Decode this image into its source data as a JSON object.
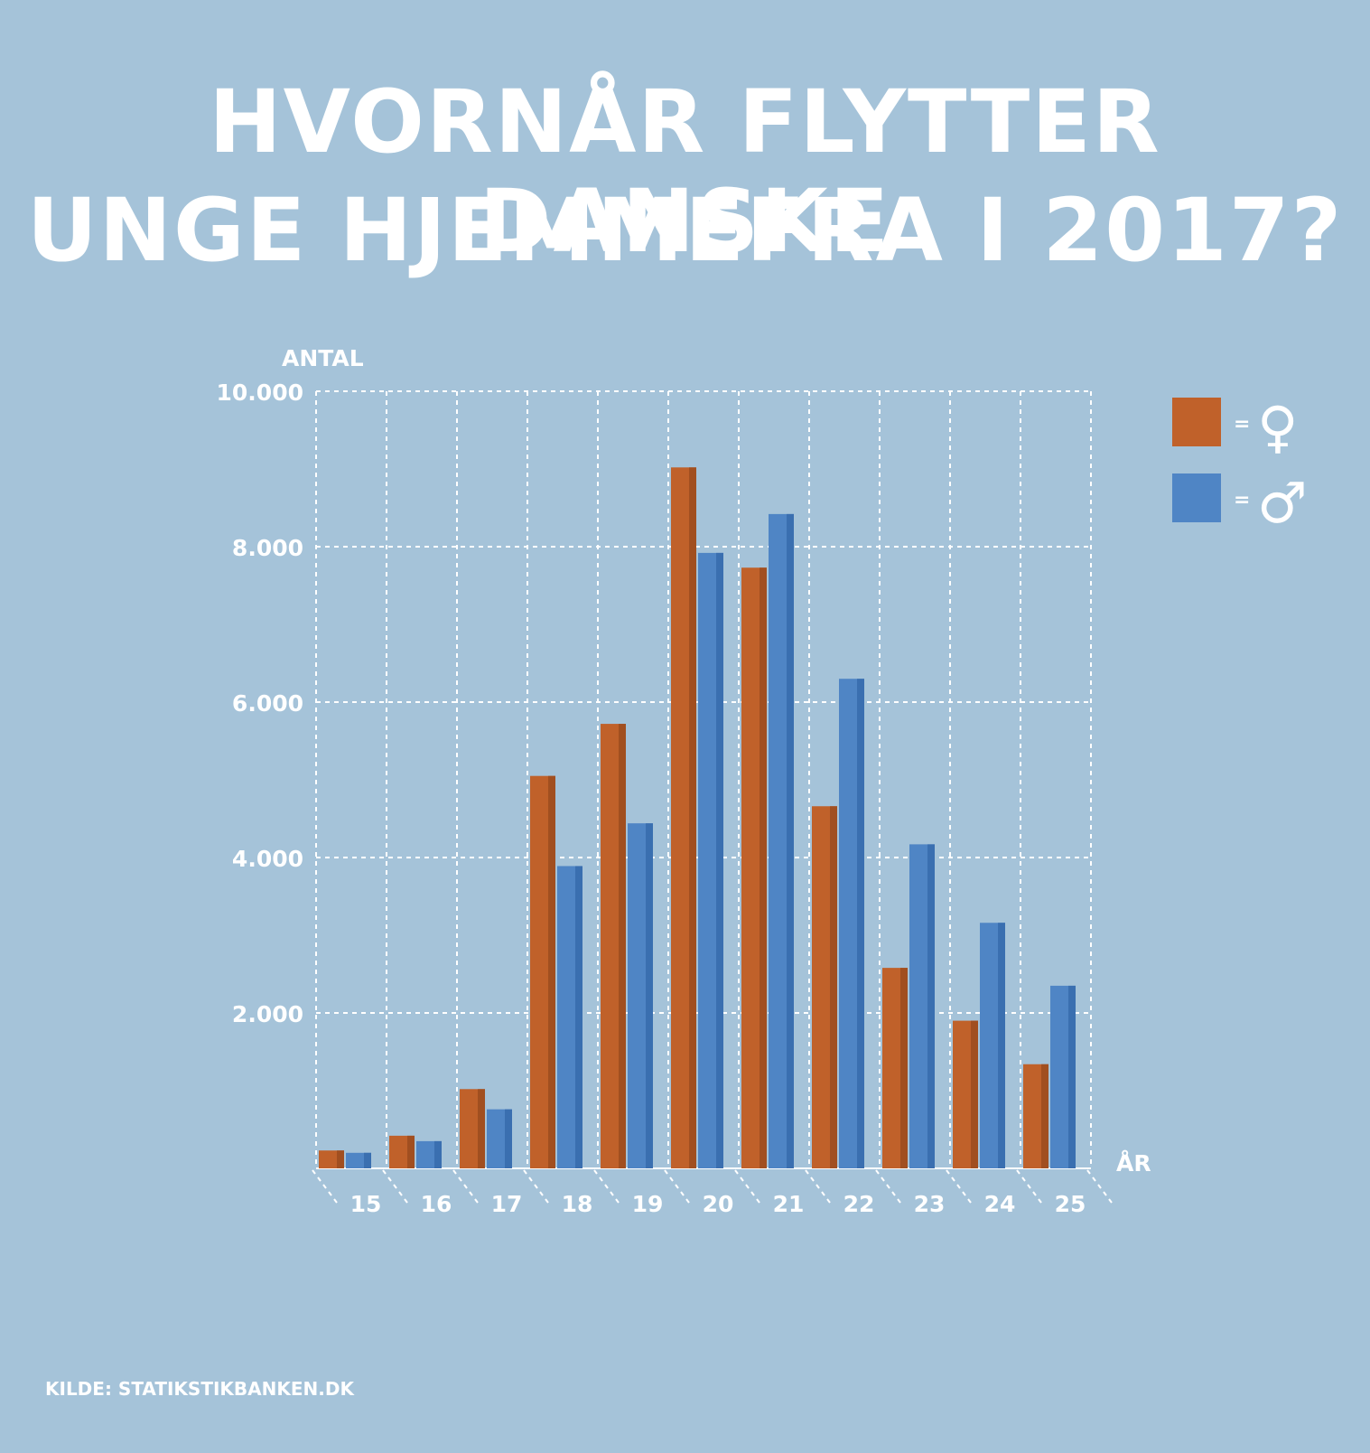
{
  "title_lines": [
    "HVORNÅR FLYTTER DANSKE",
    "UNGE HJEMMEFRA I 2017?"
  ],
  "source": "KILDE: STATIKSTIKBANKEN.DK",
  "legend": [
    {
      "symbol": "♀",
      "equals": "=",
      "color": "#c0612a"
    },
    {
      "symbol": "♂",
      "equals": "=",
      "color": "#4f85c5"
    }
  ],
  "colors": {
    "background": "#a5c3d9",
    "female": "#c0612a",
    "female_side": "#a14f20",
    "male": "#4f85c5",
    "male_side": "#3a6fb0",
    "grid": "#ffffff",
    "text": "#ffffff"
  },
  "chart_data": {
    "type": "bar",
    "ylabel": "ANTAL",
    "xlabel": "ÅR",
    "categories": [
      "15",
      "16",
      "17",
      "18",
      "19",
      "20",
      "21",
      "22",
      "23",
      "24",
      "25"
    ],
    "yticks": [
      2000,
      4000,
      6000,
      8000,
      10000
    ],
    "ytick_labels": [
      "2.000",
      "4.000",
      "6.000",
      "8.000",
      "10.000"
    ],
    "ylim": [
      0,
      10000
    ],
    "grid": true,
    "legend_position": "top-right",
    "series": [
      {
        "values": [
          230,
          420,
          1020,
          5050,
          5720,
          9020,
          7730,
          4660,
          2580,
          1900,
          1340
        ]
      },
      {
        "values": [
          200,
          350,
          760,
          3890,
          4440,
          7920,
          8420,
          6300,
          4170,
          3160,
          2350
        ]
      }
    ]
  }
}
